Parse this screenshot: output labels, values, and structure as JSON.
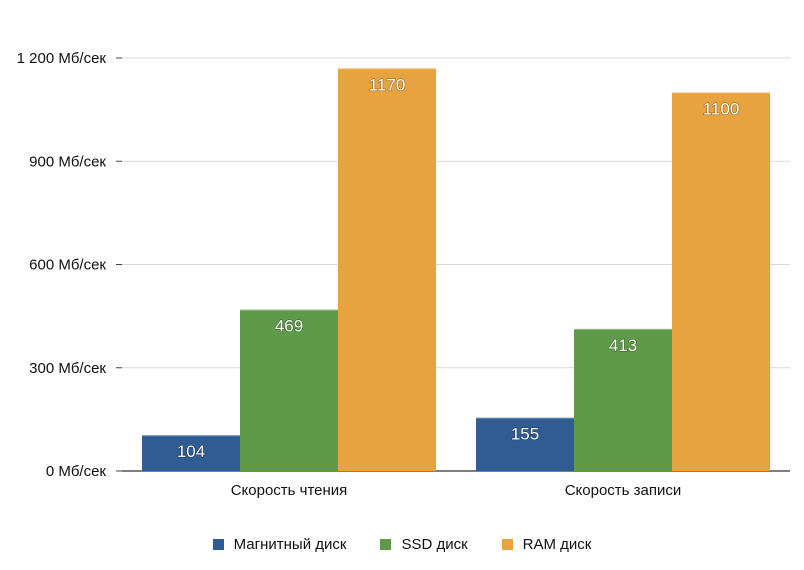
{
  "chart_data": {
    "type": "bar",
    "categories": [
      "Скорость чтения",
      "Скорость записи"
    ],
    "series": [
      {
        "name": "Магнитный диск",
        "values": [
          104,
          155
        ],
        "color": "#2f5c93"
      },
      {
        "name": "SSD диск",
        "values": [
          469,
          413
        ],
        "color": "#5e9a47"
      },
      {
        "name": "RAM диск",
        "values": [
          1170,
          1100
        ],
        "color": "#e6a33e"
      }
    ],
    "ylim": [
      0,
      1200
    ],
    "yticks": [
      0,
      300,
      600,
      900,
      1200
    ],
    "ytick_labels": [
      "0 Мб/сек",
      "300 Мб/сек",
      "600 Мб/сек",
      "900 Мб/сек",
      "1 200 Мб/сек"
    ],
    "grid": true,
    "legend_position": "bottom"
  }
}
